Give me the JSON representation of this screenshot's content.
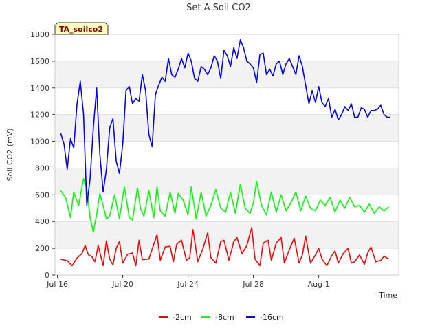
{
  "chart_data": {
    "type": "line",
    "title": "Set A Soil CO2",
    "xlabel": "Time",
    "ylabel": "Soil CO2 (mV)",
    "badge": "TA_soilco2",
    "x_unit": "day offset from Jul 16",
    "xlim": [
      -0.15,
      20.9
    ],
    "ylim": [
      0,
      1800
    ],
    "y_ticks": [
      0,
      200,
      400,
      600,
      800,
      1000,
      1200,
      1400,
      1600,
      1800
    ],
    "x_ticks": [
      {
        "day": 0,
        "label": "Jul 16"
      },
      {
        "day": 4,
        "label": "Jul 20"
      },
      {
        "day": 8,
        "label": "Jul 24"
      },
      {
        "day": 12,
        "label": "Jul 28"
      },
      {
        "day": 16,
        "label": "Aug 1"
      }
    ],
    "grid": true,
    "legend_position": "bottom-center",
    "series": [
      {
        "name": "-2cm",
        "color": "#ff0000",
        "x": [
          0.2,
          0.6,
          0.9,
          1.2,
          1.5,
          1.7,
          1.9,
          2.1,
          2.3,
          2.5,
          2.8,
          3.0,
          3.2,
          3.4,
          3.6,
          3.8,
          4.0,
          4.3,
          4.6,
          4.8,
          5.0,
          5.2,
          5.6,
          5.9,
          6.1,
          6.3,
          6.6,
          6.9,
          7.1,
          7.3,
          7.6,
          7.9,
          8.1,
          8.3,
          8.6,
          8.9,
          9.2,
          9.4,
          9.7,
          10.0,
          10.2,
          10.5,
          10.8,
          11.0,
          11.3,
          11.6,
          11.9,
          12.1,
          12.4,
          12.6,
          12.9,
          13.1,
          13.4,
          13.7,
          13.9,
          14.2,
          14.5,
          14.8,
          15.0,
          15.2,
          15.5,
          15.8,
          16.0,
          16.2,
          16.5,
          16.8,
          17.0,
          17.2,
          17.5,
          17.8,
          18.0,
          18.2,
          18.5,
          18.8,
          19.0,
          19.2,
          19.5,
          19.8,
          20.0,
          20.3
        ],
        "values": [
          118,
          108,
          70,
          128,
          160,
          220,
          150,
          140,
          100,
          220,
          70,
          255,
          120,
          75,
          200,
          250,
          90,
          155,
          165,
          70,
          260,
          115,
          120,
          230,
          300,
          110,
          210,
          215,
          100,
          230,
          260,
          110,
          130,
          340,
          100,
          195,
          315,
          130,
          90,
          250,
          260,
          110,
          250,
          280,
          160,
          220,
          355,
          120,
          70,
          240,
          260,
          110,
          240,
          280,
          90,
          190,
          275,
          90,
          150,
          290,
          90,
          150,
          200,
          120,
          70,
          145,
          180,
          90,
          160,
          200,
          90,
          100,
          150,
          80,
          165,
          210,
          100,
          110,
          140,
          120
        ]
      },
      {
        "name": "-8cm",
        "color": "#00ff00",
        "x": [
          0.2,
          0.5,
          0.8,
          1.0,
          1.3,
          1.6,
          1.8,
          2.0,
          2.2,
          2.4,
          2.6,
          2.8,
          3.0,
          3.2,
          3.5,
          3.8,
          4.1,
          4.4,
          4.6,
          4.9,
          5.1,
          5.3,
          5.6,
          5.9,
          6.1,
          6.3,
          6.6,
          6.9,
          7.2,
          7.4,
          7.7,
          8.0,
          8.2,
          8.5,
          8.8,
          9.1,
          9.4,
          9.7,
          10.0,
          10.3,
          10.6,
          10.9,
          11.2,
          11.5,
          11.8,
          12.0,
          12.2,
          12.5,
          12.8,
          13.1,
          13.4,
          13.7,
          14.0,
          14.3,
          14.6,
          14.9,
          15.2,
          15.5,
          15.8,
          16.1,
          16.4,
          16.7,
          17.0,
          17.3,
          17.6,
          17.9,
          18.2,
          18.5,
          18.8,
          19.1,
          19.4,
          19.7,
          20.0,
          20.3
        ],
        "values": [
          630,
          580,
          430,
          620,
          520,
          720,
          650,
          430,
          320,
          450,
          610,
          520,
          420,
          440,
          600,
          420,
          660,
          430,
          410,
          650,
          490,
          440,
          630,
          430,
          660,
          480,
          440,
          620,
          460,
          610,
          560,
          450,
          660,
          420,
          620,
          440,
          520,
          640,
          500,
          470,
          620,
          460,
          680,
          500,
          460,
          540,
          700,
          520,
          450,
          620,
          470,
          600,
          480,
          540,
          620,
          480,
          590,
          500,
          480,
          560,
          520,
          580,
          470,
          560,
          500,
          580,
          510,
          520,
          470,
          530,
          460,
          510,
          480,
          510
        ]
      },
      {
        "name": "-16cm",
        "color": "#0000ff",
        "x": [
          0.2,
          0.4,
          0.6,
          0.8,
          1.0,
          1.2,
          1.4,
          1.6,
          1.8,
          2.0,
          2.2,
          2.4,
          2.6,
          2.8,
          3.0,
          3.2,
          3.4,
          3.6,
          3.8,
          4.0,
          4.2,
          4.4,
          4.6,
          4.8,
          5.0,
          5.2,
          5.4,
          5.6,
          5.8,
          6.0,
          6.2,
          6.4,
          6.6,
          6.8,
          7.0,
          7.2,
          7.4,
          7.6,
          7.8,
          8.0,
          8.2,
          8.4,
          8.6,
          8.8,
          9.0,
          9.2,
          9.4,
          9.6,
          9.8,
          10.0,
          10.2,
          10.4,
          10.6,
          10.8,
          11.0,
          11.2,
          11.4,
          11.6,
          11.8,
          12.0,
          12.2,
          12.4,
          12.6,
          12.8,
          13.0,
          13.2,
          13.4,
          13.6,
          13.8,
          14.0,
          14.2,
          14.4,
          14.6,
          14.8,
          15.0,
          15.2,
          15.4,
          15.6,
          15.8,
          16.0,
          16.2,
          16.4,
          16.6,
          16.8,
          17.0,
          17.2,
          17.4,
          17.6,
          17.8,
          18.0,
          18.2,
          18.4,
          18.6,
          18.8,
          19.0,
          19.2,
          19.4,
          19.6,
          19.8,
          20.0,
          20.2,
          20.4
        ],
        "values": [
          1060,
          980,
          790,
          1020,
          950,
          1280,
          1450,
          1200,
          520,
          720,
          1100,
          1400,
          900,
          620,
          790,
          1100,
          1170,
          850,
          760,
          980,
          1380,
          1410,
          1280,
          1320,
          1300,
          1500,
          1380,
          1050,
          960,
          1350,
          1420,
          1480,
          1450,
          1620,
          1500,
          1480,
          1540,
          1620,
          1550,
          1660,
          1600,
          1470,
          1450,
          1560,
          1540,
          1500,
          1550,
          1640,
          1600,
          1470,
          1680,
          1640,
          1560,
          1700,
          1620,
          1760,
          1700,
          1600,
          1580,
          1550,
          1440,
          1650,
          1660,
          1500,
          1540,
          1490,
          1580,
          1600,
          1500,
          1580,
          1620,
          1560,
          1500,
          1640,
          1560,
          1420,
          1280,
          1380,
          1290,
          1410,
          1290,
          1260,
          1320,
          1180,
          1240,
          1160,
          1200,
          1260,
          1230,
          1280,
          1180,
          1180,
          1250,
          1240,
          1180,
          1230,
          1230,
          1240,
          1270,
          1200,
          1180,
          1180
        ]
      }
    ]
  }
}
